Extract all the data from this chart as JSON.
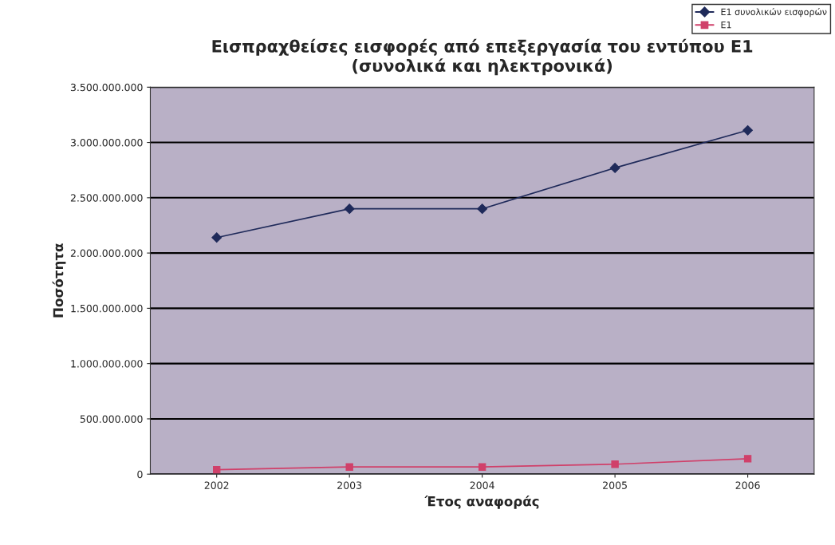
{
  "chart_data": {
    "type": "line",
    "title": "Εισπραχθείσες εισφορές από επεξεργασία του εντύπου Ε1\n(συνολικά και ηλεκτρονικά)",
    "xlabel": "Έτος αναφοράς",
    "ylabel": "Ποσότητα",
    "categories": [
      "2002",
      "2003",
      "2004",
      "2005",
      "2006"
    ],
    "series": [
      {
        "name": "Ε1 συνολικών εισφορών",
        "color": "#1f2a5a",
        "marker": "diamond",
        "values": [
          2140000000,
          2400000000,
          2400000000,
          2770000000,
          3110000000
        ]
      },
      {
        "name": "Ε1",
        "color": "#d0406a",
        "marker": "square",
        "values": [
          40000000,
          65000000,
          65000000,
          90000000,
          140000000
        ]
      }
    ],
    "ylim": [
      0,
      3500000000
    ],
    "yticks": [
      {
        "value": 0,
        "label": "0"
      },
      {
        "value": 500000000,
        "label": "500.000.000"
      },
      {
        "value": 1000000000,
        "label": "1.000.000.000"
      },
      {
        "value": 1500000000,
        "label": "1.500.000.000"
      },
      {
        "value": 2000000000,
        "label": "2.000.000.000"
      },
      {
        "value": 2500000000,
        "label": "2.500.000.000"
      },
      {
        "value": 3000000000,
        "label": "3.000.000.000"
      },
      {
        "value": 3500000000,
        "label": "3.500.000.000"
      }
    ],
    "grid": "y",
    "legend": "top right"
  }
}
